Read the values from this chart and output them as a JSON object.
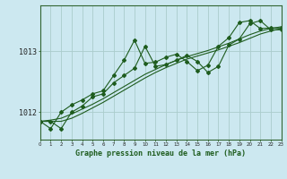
{
  "title": "Graphe pression niveau de la mer (hPa)",
  "background_color": "#cce8f0",
  "grid_color": "#aacccc",
  "line_color": "#1e5c1e",
  "x_min": 0,
  "x_max": 23,
  "y_min": 1011.55,
  "y_max": 1013.75,
  "yticks": [
    1012,
    1013
  ],
  "xticks": [
    0,
    1,
    2,
    3,
    4,
    5,
    6,
    7,
    8,
    9,
    10,
    11,
    12,
    13,
    14,
    15,
    16,
    17,
    18,
    19,
    20,
    21,
    22,
    23
  ],
  "series": [
    [
      1011.85,
      1011.85,
      1011.73,
      1012.0,
      1012.1,
      1012.25,
      1012.3,
      1012.48,
      1012.6,
      1012.72,
      1013.08,
      1012.75,
      1012.78,
      1012.85,
      1012.93,
      1012.83,
      1012.65,
      1012.75,
      1013.1,
      1013.2,
      1013.45,
      1013.5,
      1013.35,
      1013.35
    ],
    [
      1011.85,
      1011.73,
      1012.0,
      1012.12,
      1012.2,
      1012.3,
      1012.35,
      1012.6,
      1012.85,
      1013.18,
      1012.8,
      1012.82,
      1012.9,
      1012.95,
      1012.83,
      1012.68,
      1012.77,
      1013.08,
      1013.22,
      1013.47,
      1013.5,
      1013.37,
      1013.38,
      1013.38
    ],
    [
      1011.85,
      1011.87,
      1011.9,
      1011.97,
      1012.05,
      1012.13,
      1012.22,
      1012.32,
      1012.42,
      1012.52,
      1012.62,
      1012.7,
      1012.78,
      1012.85,
      1012.91,
      1012.96,
      1013.01,
      1013.07,
      1013.13,
      1013.2,
      1013.27,
      1013.33,
      1013.37,
      1013.4
    ],
    [
      1011.85,
      1011.85,
      1011.85,
      1011.9,
      1011.98,
      1012.07,
      1012.16,
      1012.26,
      1012.36,
      1012.46,
      1012.56,
      1012.65,
      1012.73,
      1012.8,
      1012.87,
      1012.92,
      1012.97,
      1013.02,
      1013.08,
      1013.14,
      1013.21,
      1013.28,
      1013.33,
      1013.37
    ]
  ]
}
